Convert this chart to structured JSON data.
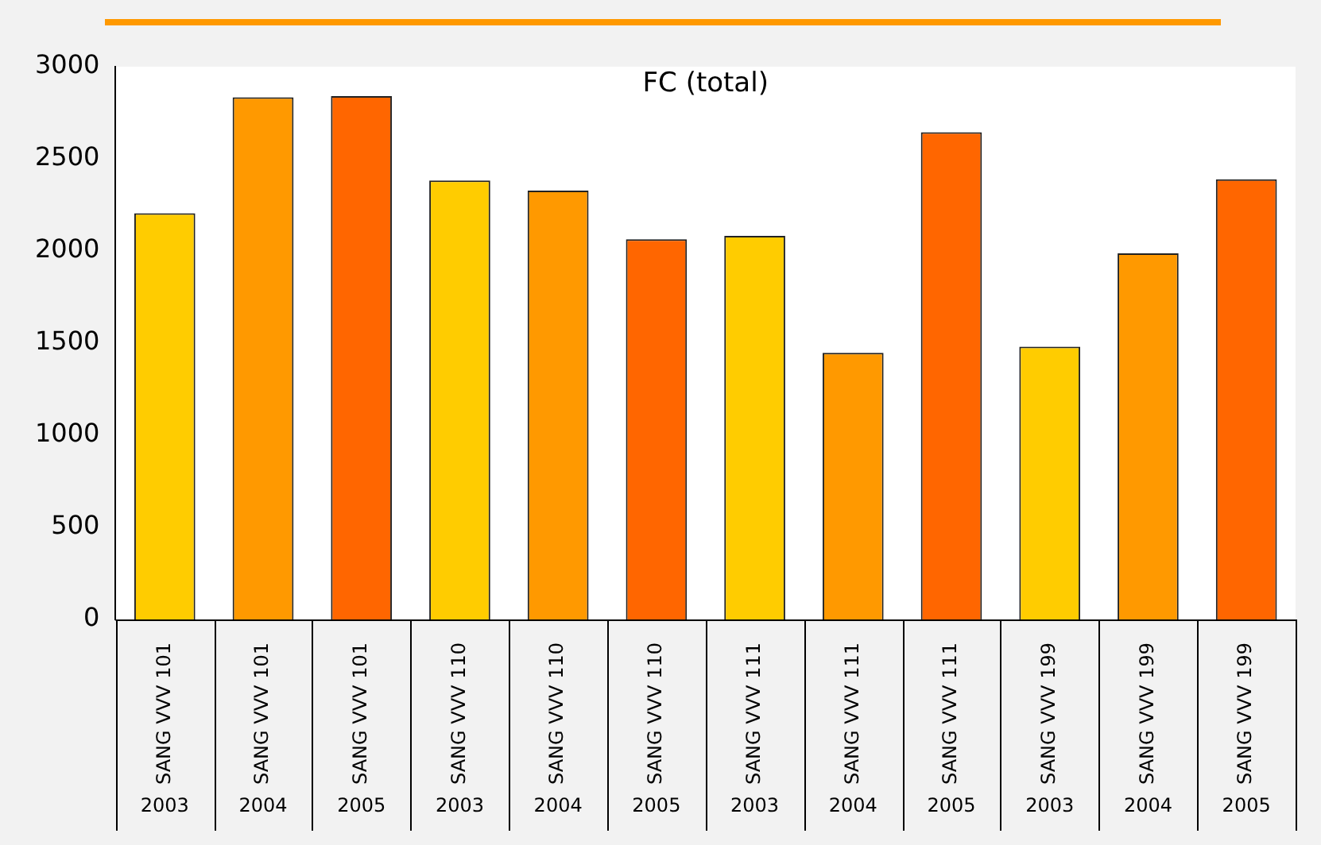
{
  "chart_data": {
    "type": "bar",
    "title": "FC (total)",
    "categories": [
      "SANG VVV 101\n2003",
      "SANG VVV 101\n2004",
      "SANG VVV 101\n2005",
      "SANG VVV 110\n2003",
      "SANG VVV 110\n2004",
      "SANG VVV 110\n2005",
      "SANG VVV 111\n2003",
      "SANG VVV 111\n2004",
      "SANG VVV 111\n2005",
      "SANG VVV 199\n2003",
      "SANG VVV 199\n2004",
      "SANG VVV 199\n2005"
    ],
    "values": [
      2205,
      2834,
      2840,
      2383,
      2328,
      2064,
      2082,
      1447,
      2644,
      1481,
      1987,
      2389
    ],
    "colors": [
      "#ffcc00",
      "#ff9900",
      "#ff6600",
      "#ffcc00",
      "#ff9900",
      "#ff6600",
      "#ffcc00",
      "#ff9900",
      "#ff6600",
      "#ffcc00",
      "#ff9900",
      "#ff6600"
    ],
    "ylim": [
      0,
      3000
    ],
    "yticks": [
      0,
      500,
      1000,
      1500,
      2000,
      2500,
      3000
    ]
  }
}
